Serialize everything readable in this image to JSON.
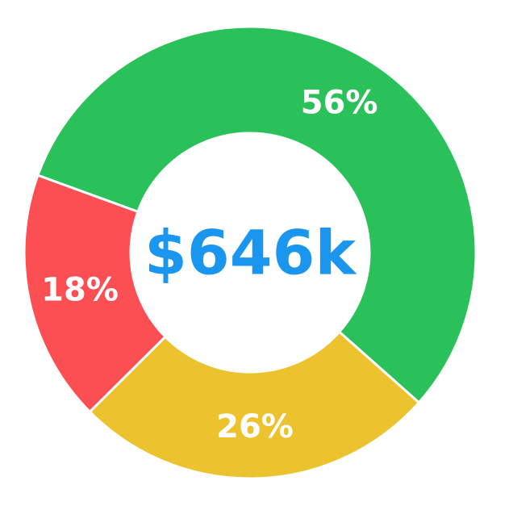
{
  "chart_data": {
    "type": "pie",
    "variant": "donut",
    "center_label": "$646k",
    "center_label_color": "#1a96ef",
    "slices": [
      {
        "value": 56,
        "label": "56%",
        "color": "#2ac15a"
      },
      {
        "value": 26,
        "label": "26%",
        "color": "#ecc22f"
      },
      {
        "value": 18,
        "label": "18%",
        "color": "#fb4f53"
      }
    ],
    "start_angle_deg": 200,
    "direction": "clockwise",
    "legend": "none"
  }
}
